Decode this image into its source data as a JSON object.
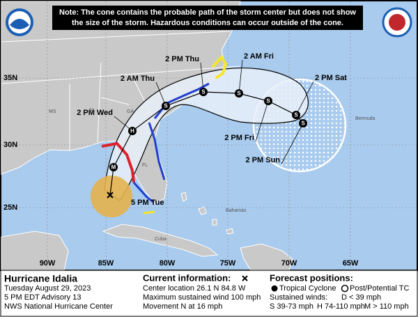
{
  "note": [
    "Note: The cone contains the probable path of the storm center but does not show",
    "the size of the storm. Hazardous conditions can occur outside of the cone."
  ],
  "forecast_points": [
    {
      "time": "5 PM Tue"
    },
    {
      "symbol": "M"
    },
    {
      "time": "2 PM Wed",
      "symbol": "H"
    },
    {
      "time": "2 AM Thu",
      "symbol": "S"
    },
    {
      "time": "2 PM Thu",
      "symbol": "S"
    },
    {
      "time": "2 AM Fri",
      "symbol": "S"
    },
    {
      "time": "2 PM Fri",
      "symbol": "S"
    },
    {
      "time": "2 PM Sat",
      "symbol": "S"
    },
    {
      "time": "2 PM Sun",
      "symbol": "S"
    }
  ],
  "latitudes": [
    "35N",
    "30N",
    "25N"
  ],
  "longitudes": [
    "90W",
    "85W",
    "80W",
    "75W",
    "70W",
    "65W"
  ],
  "places": [
    "MS",
    "AL",
    "GA",
    "FL",
    "Bermuda",
    "Bahamas",
    "Cuba"
  ],
  "storm": {
    "name": "Hurricane Idalia",
    "date": "Tuesday August 29, 2023",
    "advisory": "5 PM EDT Advisory 13",
    "source": "NWS National Hurricane Center"
  },
  "current": {
    "title": "Current information:",
    "location": "Center location 26.1 N 84.8 W",
    "wind": "Maximum sustained wind 100 mph",
    "movement": "Movement N at 16 mph"
  },
  "forecast": {
    "title": "Forecast positions:",
    "tropical": "Tropical Cyclone",
    "post": "Post/Potential TC",
    "winds_title": "Sustained winds:",
    "d": "D < 39 mph",
    "s": "S 39-73 mph",
    "h": "H 74-110 mph",
    "m": "M > 110 mph"
  }
}
